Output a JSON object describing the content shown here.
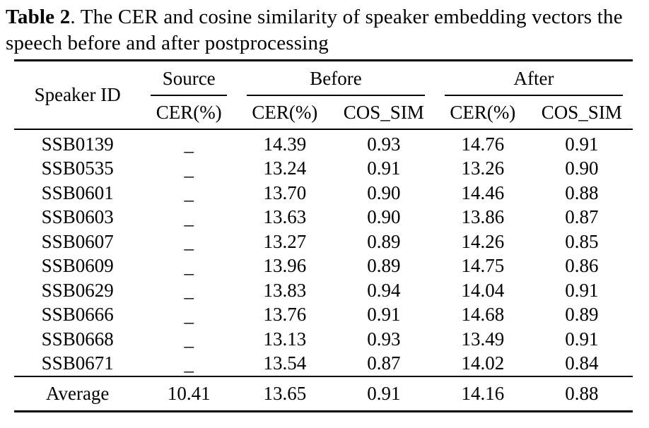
{
  "caption": {
    "label": "Table 2",
    "rest": ". The CER and cosine similarity of speaker embedding vectors the speech before and after postprocessing"
  },
  "table": {
    "group_headers": {
      "speaker": "Speaker ID",
      "source": "Source",
      "before": "Before",
      "after": "After"
    },
    "sub_headers": {
      "source_cer": "CER(%)",
      "before_cer": "CER(%)",
      "before_cos": "COS_SIM",
      "after_cer": "CER(%)",
      "after_cos": "COS_SIM"
    },
    "rows": [
      {
        "speaker_id": "SSB0139",
        "source_cer": "_",
        "before_cer": "14.39",
        "before_cos": "0.93",
        "after_cer": "14.76",
        "after_cos": "0.91"
      },
      {
        "speaker_id": "SSB0535",
        "source_cer": "_",
        "before_cer": "13.24",
        "before_cos": "0.91",
        "after_cer": "13.26",
        "after_cos": "0.90"
      },
      {
        "speaker_id": "SSB0601",
        "source_cer": "_",
        "before_cer": "13.70",
        "before_cos": "0.90",
        "after_cer": "14.46",
        "after_cos": "0.88"
      },
      {
        "speaker_id": "SSB0603",
        "source_cer": "_",
        "before_cer": "13.63",
        "before_cos": "0.90",
        "after_cer": "13.86",
        "after_cos": "0.87"
      },
      {
        "speaker_id": "SSB0607",
        "source_cer": "_",
        "before_cer": "13.27",
        "before_cos": "0.89",
        "after_cer": "14.26",
        "after_cos": "0.85"
      },
      {
        "speaker_id": "SSB0609",
        "source_cer": "_",
        "before_cer": "13.96",
        "before_cos": "0.89",
        "after_cer": "14.75",
        "after_cos": "0.86"
      },
      {
        "speaker_id": "SSB0629",
        "source_cer": "_",
        "before_cer": "13.83",
        "before_cos": "0.94",
        "after_cer": "14.04",
        "after_cos": "0.91"
      },
      {
        "speaker_id": "SSB0666",
        "source_cer": "_",
        "before_cer": "13.76",
        "before_cos": "0.91",
        "after_cer": "14.68",
        "after_cos": "0.89"
      },
      {
        "speaker_id": "SSB0668",
        "source_cer": "_",
        "before_cer": "13.13",
        "before_cos": "0.93",
        "after_cer": "13.49",
        "after_cos": "0.91"
      },
      {
        "speaker_id": "SSB0671",
        "source_cer": "_",
        "before_cer": "13.54",
        "before_cos": "0.87",
        "after_cer": "14.02",
        "after_cos": "0.84"
      }
    ],
    "footer": {
      "label": "Average",
      "source_cer": "10.41",
      "before_cer": "13.65",
      "before_cos": "0.91",
      "after_cer": "14.16",
      "after_cos": "0.88"
    }
  }
}
